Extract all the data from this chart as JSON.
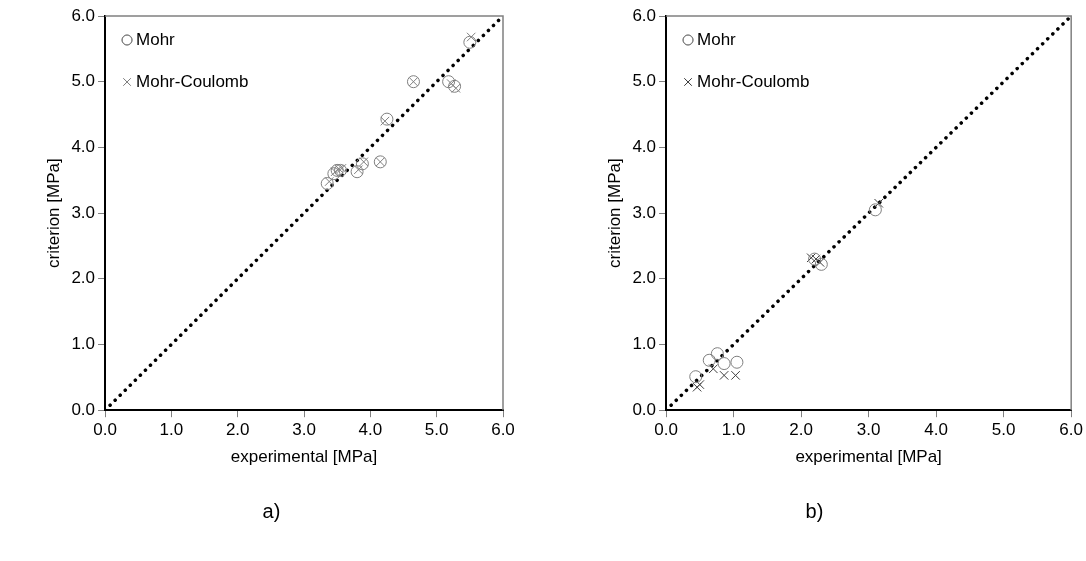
{
  "chart_data": [
    {
      "type": "scatter",
      "xlabel": "experimental [MPa]",
      "ylabel": "criterion [MPa]",
      "annotations": [
        "a)"
      ],
      "xlim": [
        0,
        6
      ],
      "ylim": [
        0,
        6
      ],
      "xticks": [
        {
          "value": 0,
          "label": "0.0"
        },
        {
          "value": 1,
          "label": "1.0"
        },
        {
          "value": 2,
          "label": "2.0"
        },
        {
          "value": 3,
          "label": "3.0"
        },
        {
          "value": 4,
          "label": "4.0"
        },
        {
          "value": 5,
          "label": "5.0"
        },
        {
          "value": 6,
          "label": "6.0"
        }
      ],
      "yticks": [
        {
          "value": 0,
          "label": "0.0"
        },
        {
          "value": 1,
          "label": "1.0"
        },
        {
          "value": 2,
          "label": "2.0"
        },
        {
          "value": 3,
          "label": "3.0"
        },
        {
          "value": 4,
          "label": "4.0"
        },
        {
          "value": 5,
          "label": "5.0"
        },
        {
          "value": 6,
          "label": "6.0"
        }
      ],
      "grid": false,
      "legend": "top left",
      "series": [
        {
          "name": "Mohr",
          "color": "#808080",
          "marker": "circle",
          "x": [
            3.35,
            3.45,
            3.5,
            3.55,
            3.8,
            3.88,
            4.15,
            4.25,
            4.65,
            5.18,
            5.27,
            5.5
          ],
          "values": [
            3.45,
            3.6,
            3.65,
            3.65,
            3.63,
            3.75,
            3.78,
            4.43,
            5.0,
            5.0,
            4.93,
            5.6
          ]
        },
        {
          "name": "Mohr-Coulomb",
          "color": "#808080",
          "marker": "cross",
          "x": [
            3.38,
            3.47,
            3.53,
            3.57,
            3.82,
            3.9,
            4.15,
            4.22,
            4.65,
            5.22,
            5.29,
            5.52
          ],
          "values": [
            3.48,
            3.63,
            3.67,
            3.68,
            3.66,
            3.78,
            3.78,
            4.4,
            5.0,
            4.97,
            4.9,
            5.68
          ]
        },
        {
          "type": "line",
          "color": "#000000",
          "line_style": "dotted",
          "marker": "none",
          "x": [
            0,
            6
          ],
          "values": [
            0,
            6
          ]
        }
      ]
    },
    {
      "type": "scatter",
      "xlabel": "experimental [MPa]",
      "ylabel": "criterion [MPa]",
      "annotations": [
        "b)"
      ],
      "xlim": [
        0,
        6
      ],
      "ylim": [
        0,
        6
      ],
      "xticks": [
        {
          "value": 0,
          "label": "0.0"
        },
        {
          "value": 1,
          "label": "1.0"
        },
        {
          "value": 2,
          "label": "2.0"
        },
        {
          "value": 3,
          "label": "3.0"
        },
        {
          "value": 4,
          "label": "4.0"
        },
        {
          "value": 5,
          "label": "5.0"
        },
        {
          "value": 6,
          "label": "6.0"
        }
      ],
      "yticks": [
        {
          "value": 0,
          "label": "0.0"
        },
        {
          "value": 1,
          "label": "1.0"
        },
        {
          "value": 2,
          "label": "2.0"
        },
        {
          "value": 3,
          "label": "3.0"
        },
        {
          "value": 4,
          "label": "4.0"
        },
        {
          "value": 5,
          "label": "5.0"
        },
        {
          "value": 6,
          "label": "6.0"
        }
      ],
      "grid": false,
      "legend": "top left",
      "series": [
        {
          "name": "Mohr",
          "color": "#808080",
          "marker": "circle",
          "x": [
            0.44,
            0.64,
            0.76,
            0.86,
            1.05,
            2.2,
            2.3,
            3.1
          ],
          "values": [
            0.51,
            0.76,
            0.86,
            0.71,
            0.73,
            2.3,
            2.22,
            3.05
          ]
        },
        {
          "name": "Mohr-Coulomb",
          "color": "#404040",
          "marker": "cross",
          "x": [
            0.46,
            0.5,
            0.7,
            0.86,
            1.03,
            2.15,
            2.22,
            2.28,
            3.15
          ],
          "values": [
            0.35,
            0.39,
            0.63,
            0.53,
            0.53,
            2.32,
            2.3,
            2.25,
            3.15
          ]
        },
        {
          "type": "line",
          "color": "#000000",
          "line_style": "dotted",
          "marker": "none",
          "x": [
            0,
            6
          ],
          "values": [
            0,
            6
          ]
        }
      ]
    }
  ]
}
